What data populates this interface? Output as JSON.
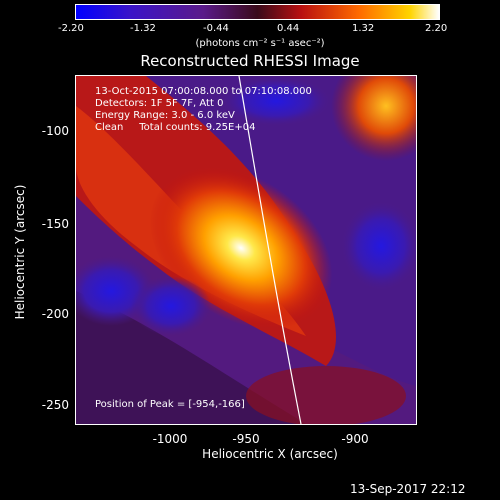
{
  "colorbar": {
    "ticks": [
      "-2.20",
      "-1.32",
      "-0.44",
      "0.44",
      "1.32",
      "2.20"
    ],
    "unit": "(photons cm⁻² s⁻¹ asec⁻²)"
  },
  "title": "Reconstructed RHESSI Image",
  "info": {
    "line1": "13-Oct-2015 07:00:08.000 to 07:10:08.000",
    "line2": "Detectors: 1F 5F 7F, Att 0",
    "line3": "Energy Range: 3.0 - 6.0 keV",
    "line4": "Clean     Total counts: 9.25E+04",
    "peak": "Position of Peak = [-954,-166]"
  },
  "axes": {
    "y_label": "Heliocentric Y (arcsec)",
    "x_label": "Heliocentric X (arcsec)",
    "y_ticks": [
      "-100",
      "-150",
      "-200",
      "-250"
    ],
    "x_ticks": [
      "-1000",
      "-950",
      "-900"
    ]
  },
  "timestamp": "13-Sep-2017 22:12",
  "colors": {
    "low": "#0000ff",
    "mid": "#4a1a7a",
    "high": "#ffffff"
  }
}
